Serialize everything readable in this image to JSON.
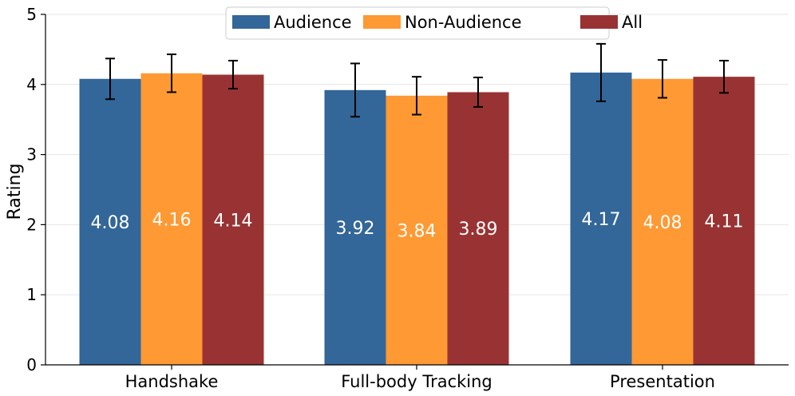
{
  "chart_data": {
    "type": "bar",
    "title": "",
    "xlabel": "",
    "ylabel": "Rating",
    "ylim": [
      0,
      5
    ],
    "yticks": [
      "0",
      "1",
      "2",
      "3",
      "4",
      "5"
    ],
    "grid": true,
    "legend_position": "top-center",
    "categories": [
      "Handshake",
      "Full-body Tracking",
      "Presentation"
    ],
    "series": [
      {
        "name": "Audience",
        "color": "#336699",
        "values": [
          4.08,
          3.92,
          4.17
        ],
        "errors": [
          0.29,
          0.38,
          0.41
        ],
        "labels": [
          "4.08",
          "3.92",
          "4.17"
        ]
      },
      {
        "name": "Non-Audience",
        "color": "#ff9933",
        "values": [
          4.16,
          3.84,
          4.08
        ],
        "errors": [
          0.27,
          0.27,
          0.27
        ],
        "labels": [
          "4.16",
          "3.84",
          "4.08"
        ]
      },
      {
        "name": "All",
        "color": "#993333",
        "values": [
          4.14,
          3.89,
          4.11
        ],
        "errors": [
          0.2,
          0.21,
          0.23
        ],
        "labels": [
          "4.14",
          "3.89",
          "4.11"
        ]
      }
    ]
  }
}
